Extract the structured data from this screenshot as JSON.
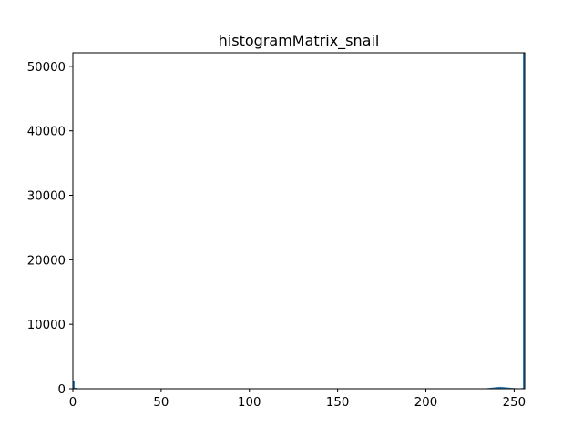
{
  "chart_data": {
    "type": "bar",
    "title": "histogramMatrix_snail",
    "xlabel": "",
    "ylabel": "",
    "xlim": [
      0,
      256
    ],
    "ylim": [
      0,
      52100
    ],
    "xticks": [
      0,
      50,
      100,
      150,
      200,
      250
    ],
    "yticks": [
      0,
      10000,
      20000,
      30000,
      40000,
      50000
    ],
    "grid": false,
    "bar_color": "#1f77b4",
    "series": [
      {
        "bins": [
          {
            "x0": 0,
            "x1": 1,
            "count": 1150
          },
          {
            "x0": 1,
            "x1": 2,
            "count": 150
          },
          {
            "x0": 234,
            "x1": 235,
            "count": 80
          },
          {
            "x0": 235,
            "x1": 236,
            "count": 110
          },
          {
            "x0": 236,
            "x1": 237,
            "count": 140
          },
          {
            "x0": 237,
            "x1": 238,
            "count": 170
          },
          {
            "x0": 238,
            "x1": 239,
            "count": 200
          },
          {
            "x0": 239,
            "x1": 240,
            "count": 230
          },
          {
            "x0": 240,
            "x1": 241,
            "count": 260
          },
          {
            "x0": 241,
            "x1": 242,
            "count": 290
          },
          {
            "x0": 242,
            "x1": 243,
            "count": 300
          },
          {
            "x0": 243,
            "x1": 244,
            "count": 280
          },
          {
            "x0": 244,
            "x1": 245,
            "count": 250
          },
          {
            "x0": 245,
            "x1": 246,
            "count": 220
          },
          {
            "x0": 246,
            "x1": 247,
            "count": 190
          },
          {
            "x0": 247,
            "x1": 248,
            "count": 160
          },
          {
            "x0": 248,
            "x1": 249,
            "count": 130
          },
          {
            "x0": 249,
            "x1": 250,
            "count": 110
          },
          {
            "x0": 250,
            "x1": 251,
            "count": 90
          },
          {
            "x0": 251,
            "x1": 252,
            "count": 80
          },
          {
            "x0": 252,
            "x1": 253,
            "count": 70
          },
          {
            "x0": 253,
            "x1": 254,
            "count": 60
          },
          {
            "x0": 254,
            "x1": 255,
            "count": 100
          },
          {
            "x0": 255,
            "x1": 256,
            "count": 52100
          }
        ]
      }
    ]
  }
}
